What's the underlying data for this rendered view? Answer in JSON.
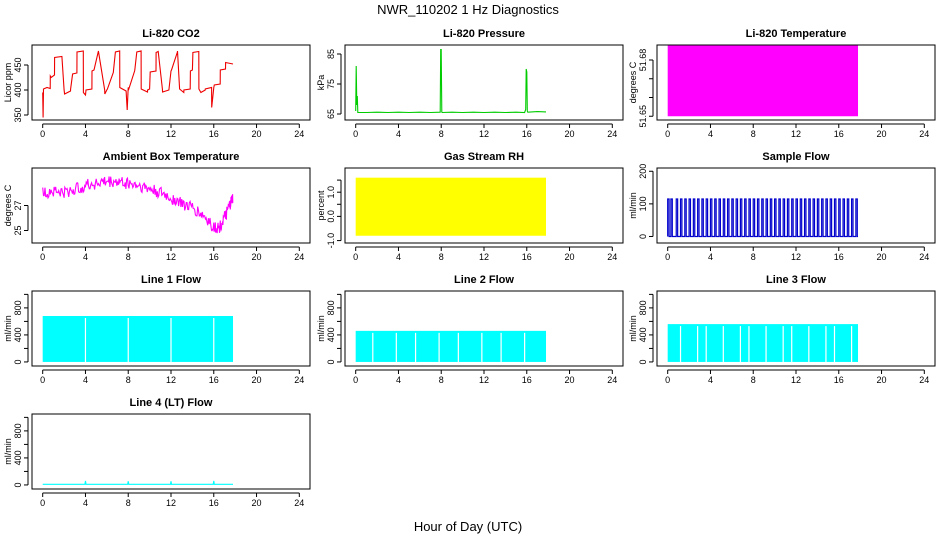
{
  "title": "NWR_110202 1 Hz Diagnostics",
  "xlabel": "Hour of Day (UTC)",
  "chart_data": [
    {
      "type": "line",
      "title": "Li-820 CO2",
      "ylabel": "Licor ppm",
      "color": "#ee0000",
      "xlim": [
        -1,
        25
      ],
      "xticks": [
        0,
        4,
        8,
        12,
        16,
        20,
        24
      ],
      "ylim": [
        340,
        490
      ],
      "yticks": [
        350,
        400,
        450
      ],
      "series": [
        {
          "x": [
            0,
            0.04,
            0.08,
            0.4,
            0.7,
            0.71,
            0.8,
            1.1,
            1.11,
            1.8,
            2.0,
            2.05,
            2.6,
            2.61,
            2.8,
            3.2,
            3.21,
            3.8,
            3.81,
            4.0,
            4.05,
            4.6,
            4.61,
            4.8,
            5.2,
            5.21,
            5.8,
            5.81,
            6.0,
            6.05,
            6.6,
            6.61,
            6.8,
            7.2,
            7.21,
            7.8,
            7.9,
            8.0,
            8.05,
            8.6,
            8.61,
            8.8,
            9.2,
            9.21,
            9.8,
            9.81,
            10.0,
            10.05,
            10.6,
            10.61,
            10.8,
            11.2,
            11.21,
            11.8,
            11.81,
            12.0,
            12.05,
            12.6,
            12.61,
            12.8,
            13.2,
            13.21,
            13.8,
            13.81,
            14.0,
            14.05,
            14.6,
            14.61,
            14.8,
            15.2,
            15.21,
            15.8,
            15.81,
            16.0,
            16.05,
            16.6,
            16.61,
            17.1,
            17.11,
            17.8
          ],
          "y": [
            395,
            345,
            402,
            405,
            403,
            428,
            425,
            430,
            465,
            467,
            400,
            392,
            398,
            402,
            432,
            434,
            476,
            478,
            395,
            390,
            400,
            402,
            438,
            440,
            477,
            478,
            400,
            392,
            400,
            402,
            435,
            437,
            476,
            478,
            405,
            398,
            360,
            405,
            402,
            438,
            440,
            476,
            478,
            402,
            396,
            400,
            402,
            436,
            438,
            475,
            477,
            402,
            396,
            400,
            402,
            438,
            440,
            476,
            478,
            402,
            395,
            400,
            402,
            438,
            440,
            475,
            477,
            402,
            395,
            400,
            402,
            405,
            365,
            405,
            410,
            412,
            440,
            442,
            455,
            452
          ]
        }
      ]
    },
    {
      "type": "line",
      "title": "Li-820 Pressure",
      "ylabel": "kPa",
      "color": "#00cc00",
      "xlim": [
        -1,
        25
      ],
      "xticks": [
        0,
        4,
        8,
        12,
        16,
        20,
        24
      ],
      "ylim": [
        63,
        88
      ],
      "yticks": [
        65,
        75,
        85
      ],
      "series": [
        {
          "x": [
            0,
            0.05,
            0.1,
            0.15,
            0.2,
            1,
            2,
            3,
            4,
            5,
            6,
            7,
            7.9,
            7.95,
            8.0,
            8.05,
            8.1,
            9,
            10,
            11,
            12,
            13,
            14,
            15,
            15.8,
            15.9,
            15.95,
            16.0,
            16.05,
            16.1,
            17,
            17.8
          ],
          "y": [
            66,
            81,
            68,
            71,
            65.5,
            65.5,
            65.6,
            65.5,
            65.6,
            65.5,
            65.6,
            65.5,
            65.6,
            86.5,
            86.5,
            65.6,
            65.5,
            65.6,
            65.5,
            65.6,
            65.5,
            65.6,
            65.5,
            65.6,
            65.5,
            66.5,
            80,
            79,
            66,
            65.6,
            65.8,
            65.7
          ]
        }
      ]
    },
    {
      "type": "area",
      "title": "Li-820 Temperature",
      "ylabel": "degrees C",
      "color": "#ff00ff",
      "xlim": [
        -1,
        25
      ],
      "xticks": [
        0,
        4,
        8,
        12,
        16,
        20,
        24
      ],
      "ylim": [
        51.648,
        51.688
      ],
      "yticks": [
        51.65,
        51.66,
        51.67,
        51.68
      ],
      "ytick_labels": [
        "51.65",
        "",
        "",
        "51.68"
      ],
      "x_range": [
        0,
        17.8
      ],
      "band": [
        51.65,
        51.688
      ]
    },
    {
      "type": "line",
      "title": "Ambient Box Temperature",
      "ylabel": "degrees C",
      "color": "#ff00ff",
      "xlim": [
        -1,
        25
      ],
      "xticks": [
        0,
        4,
        8,
        12,
        16,
        20,
        24
      ],
      "ylim": [
        24.0,
        30.0
      ],
      "yticks": [
        25,
        27
      ],
      "series": [
        {
          "x": [
            0,
            1,
            2,
            3,
            4,
            5,
            6,
            7,
            8,
            9,
            10,
            11,
            12,
            13,
            14,
            15,
            16,
            16.5,
            17,
            17.5,
            17.8
          ],
          "y": [
            28.0,
            28.2,
            28.0,
            28.3,
            28.6,
            28.8,
            28.9,
            28.9,
            28.8,
            28.6,
            28.3,
            28.0,
            27.6,
            27.2,
            26.8,
            26.2,
            25.3,
            25.2,
            26.0,
            27.0,
            27.6
          ],
          "noise": 0.5
        }
      ]
    },
    {
      "type": "area",
      "title": "Gas Stream RH",
      "ylabel": "percent",
      "color": "#ffff00",
      "xlim": [
        -1,
        25
      ],
      "xticks": [
        0,
        4,
        8,
        12,
        16,
        20,
        24
      ],
      "ylim": [
        -1.1,
        2.0
      ],
      "yticks": [
        -1.0,
        0.0,
        0.5,
        1.0,
        1.5
      ],
      "ytick_labels": [
        "-1.0",
        "0.0",
        "",
        "1.0",
        ""
      ],
      "x_range": [
        0,
        17.8
      ],
      "band": [
        -0.8,
        1.6
      ]
    },
    {
      "type": "line",
      "title": "Sample Flow",
      "ylabel": "ml/min",
      "color": "#0000cc",
      "xlim": [
        -1,
        25
      ],
      "xticks": [
        0,
        4,
        8,
        12,
        16,
        20,
        24
      ],
      "ylim": [
        -20,
        210
      ],
      "yticks": [
        0,
        100,
        200
      ],
      "baseline": 0,
      "pulse_value": 115,
      "pulse_times": [
        0.0,
        0.3,
        0.8,
        1.2,
        1.6,
        2.0,
        2.4,
        2.8,
        3.2,
        3.6,
        4.0,
        4.4,
        4.8,
        5.2,
        5.6,
        6.0,
        6.4,
        6.8,
        7.2,
        7.6,
        8.0,
        8.4,
        8.8,
        9.2,
        9.6,
        10.0,
        10.4,
        10.8,
        11.2,
        11.6,
        12.0,
        12.4,
        12.8,
        13.2,
        13.6,
        14.0,
        14.4,
        14.8,
        15.2,
        15.6,
        16.0,
        16.4,
        16.8,
        17.2,
        17.6
      ]
    },
    {
      "type": "area",
      "title": "Line 1 Flow",
      "ylabel": "ml/min",
      "color": "#00ffff",
      "xlim": [
        -1,
        25
      ],
      "xticks": [
        0,
        4,
        8,
        12,
        16,
        20,
        24
      ],
      "ylim": [
        -60,
        1050
      ],
      "yticks": [
        0,
        200,
        400,
        600,
        800,
        1000
      ],
      "ytick_labels": [
        "0",
        "",
        "400",
        "",
        "800",
        ""
      ],
      "x_range": [
        0,
        17.8
      ],
      "band": [
        0,
        680
      ],
      "gaps": [
        4,
        8,
        12,
        16
      ]
    },
    {
      "type": "area",
      "title": "Line 2 Flow",
      "ylabel": "ml/min",
      "color": "#00ffff",
      "xlim": [
        -1,
        25
      ],
      "xticks": [
        0,
        4,
        8,
        12,
        16,
        20,
        24
      ],
      "ylim": [
        -60,
        1050
      ],
      "yticks": [
        0,
        200,
        400,
        600,
        800,
        1000
      ],
      "ytick_labels": [
        "0",
        "",
        "400",
        "",
        "800",
        ""
      ],
      "x_range": [
        0,
        17.8
      ],
      "band": [
        0,
        460
      ],
      "gaps": [
        1.6,
        3.8,
        5.6,
        7.8,
        9.6,
        11.8,
        13.6,
        15.8
      ]
    },
    {
      "type": "area",
      "title": "Line 3 Flow",
      "ylabel": "ml/min",
      "color": "#00ffff",
      "xlim": [
        -1,
        25
      ],
      "xticks": [
        0,
        4,
        8,
        12,
        16,
        20,
        24
      ],
      "ylim": [
        -60,
        1050
      ],
      "yticks": [
        0,
        200,
        400,
        600,
        800,
        1000
      ],
      "ytick_labels": [
        "0",
        "",
        "400",
        "",
        "800",
        ""
      ],
      "x_range": [
        0,
        17.8
      ],
      "band": [
        0,
        560
      ],
      "gaps": [
        1.2,
        2.8,
        3.6,
        5.2,
        6.8,
        7.6,
        9.2,
        10.8,
        11.6,
        13.2,
        14.8,
        15.6,
        17.2
      ]
    },
    {
      "type": "line",
      "title": "Line 4 (LT) Flow",
      "ylabel": "ml/min",
      "color": "#00ffff",
      "xlim": [
        -1,
        25
      ],
      "xticks": [
        0,
        4,
        8,
        12,
        16,
        20,
        24
      ],
      "ylim": [
        -60,
        1050
      ],
      "yticks": [
        0,
        200,
        400,
        600,
        800,
        1000
      ],
      "ytick_labels": [
        "0",
        "",
        "400",
        "",
        "800",
        ""
      ],
      "series": [
        {
          "x": [
            0,
            3.95,
            4.0,
            4.05,
            7.95,
            8.0,
            8.05,
            11.95,
            12.0,
            12.05,
            15.95,
            16.0,
            16.05,
            17.8
          ],
          "y": [
            10,
            10,
            60,
            10,
            10,
            55,
            10,
            10,
            55,
            10,
            10,
            60,
            10,
            10
          ]
        }
      ]
    }
  ]
}
